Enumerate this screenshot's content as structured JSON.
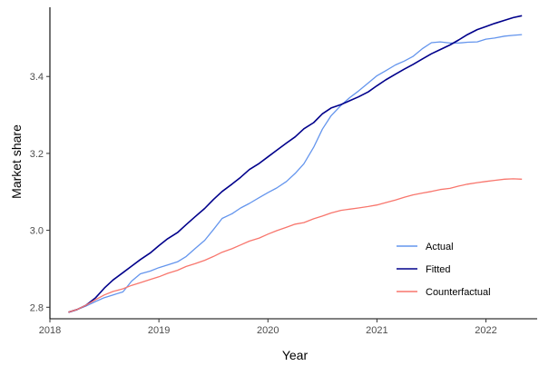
{
  "chart_data": {
    "type": "line",
    "xlabel": "Year",
    "ylabel": "Market share",
    "xlim": [
      2018.0,
      2022.47
    ],
    "ylim": [
      2.77,
      3.58
    ],
    "xticks": [
      2018,
      2019,
      2020,
      2021,
      2022
    ],
    "xtick_labels": [
      "2018",
      "2019",
      "2020",
      "2021",
      "2022"
    ],
    "yticks": [
      2.8,
      3.0,
      3.2,
      3.4
    ],
    "ytick_labels": [
      "2.8",
      "3.0",
      "3.2",
      "3.4"
    ],
    "grid": false,
    "legend_position": "bottom-right",
    "series": [
      {
        "name": "Actual",
        "color": "#6495ED",
        "x": [
          2018.17,
          2018.25,
          2018.33,
          2018.42,
          2018.5,
          2018.58,
          2018.67,
          2018.75,
          2018.83,
          2018.92,
          2019.0,
          2019.08,
          2019.17,
          2019.25,
          2019.33,
          2019.42,
          2019.5,
          2019.58,
          2019.67,
          2019.75,
          2019.83,
          2019.92,
          2020.0,
          2020.08,
          2020.17,
          2020.25,
          2020.33,
          2020.42,
          2020.5,
          2020.58,
          2020.67,
          2020.75,
          2020.83,
          2020.92,
          2021.0,
          2021.08,
          2021.17,
          2021.25,
          2021.33,
          2021.42,
          2021.5,
          2021.58,
          2021.67,
          2021.75,
          2021.83,
          2021.92,
          2022.0,
          2022.08,
          2022.17,
          2022.25,
          2022.33
        ],
        "y": [
          2.787,
          2.794,
          2.803,
          2.815,
          2.825,
          2.832,
          2.84,
          2.868,
          2.887,
          2.894,
          2.903,
          2.91,
          2.918,
          2.932,
          2.952,
          2.974,
          3.002,
          3.031,
          3.043,
          3.058,
          3.07,
          3.085,
          3.098,
          3.11,
          3.127,
          3.148,
          3.173,
          3.216,
          3.263,
          3.298,
          3.325,
          3.345,
          3.362,
          3.383,
          3.402,
          3.415,
          3.43,
          3.44,
          3.452,
          3.473,
          3.488,
          3.49,
          3.487,
          3.487,
          3.489,
          3.49,
          3.497,
          3.5,
          3.505,
          3.507,
          3.509
        ]
      },
      {
        "name": "Fitted",
        "color": "#00008B",
        "x": [
          2018.17,
          2018.25,
          2018.33,
          2018.42,
          2018.5,
          2018.58,
          2018.67,
          2018.75,
          2018.83,
          2018.92,
          2019.0,
          2019.08,
          2019.17,
          2019.25,
          2019.33,
          2019.42,
          2019.5,
          2019.58,
          2019.67,
          2019.75,
          2019.83,
          2019.92,
          2020.0,
          2020.08,
          2020.17,
          2020.25,
          2020.33,
          2020.42,
          2020.5,
          2020.58,
          2020.67,
          2020.75,
          2020.83,
          2020.92,
          2021.0,
          2021.08,
          2021.17,
          2021.25,
          2021.33,
          2021.42,
          2021.5,
          2021.58,
          2021.67,
          2021.75,
          2021.83,
          2021.92,
          2022.0,
          2022.08,
          2022.17,
          2022.25,
          2022.33
        ],
        "y": [
          2.787,
          2.794,
          2.805,
          2.825,
          2.85,
          2.871,
          2.89,
          2.907,
          2.924,
          2.941,
          2.96,
          2.978,
          2.994,
          3.015,
          3.035,
          3.057,
          3.08,
          3.101,
          3.12,
          3.138,
          3.158,
          3.174,
          3.191,
          3.208,
          3.227,
          3.243,
          3.264,
          3.28,
          3.303,
          3.318,
          3.327,
          3.337,
          3.347,
          3.36,
          3.376,
          3.391,
          3.406,
          3.419,
          3.431,
          3.446,
          3.459,
          3.47,
          3.482,
          3.495,
          3.509,
          3.522,
          3.53,
          3.538,
          3.546,
          3.553,
          3.558
        ]
      },
      {
        "name": "Counterfactual",
        "color": "#F8766D",
        "x": [
          2018.17,
          2018.25,
          2018.33,
          2018.42,
          2018.5,
          2018.58,
          2018.67,
          2018.75,
          2018.83,
          2018.92,
          2019.0,
          2019.08,
          2019.17,
          2019.25,
          2019.33,
          2019.42,
          2019.5,
          2019.58,
          2019.67,
          2019.75,
          2019.83,
          2019.92,
          2020.0,
          2020.08,
          2020.17,
          2020.25,
          2020.33,
          2020.42,
          2020.5,
          2020.58,
          2020.67,
          2020.75,
          2020.83,
          2020.92,
          2021.0,
          2021.08,
          2021.17,
          2021.25,
          2021.33,
          2021.42,
          2021.5,
          2021.58,
          2021.67,
          2021.75,
          2021.83,
          2021.92,
          2022.0,
          2022.08,
          2022.17,
          2022.25,
          2022.33
        ],
        "y": [
          2.787,
          2.794,
          2.805,
          2.82,
          2.832,
          2.841,
          2.848,
          2.857,
          2.864,
          2.872,
          2.879,
          2.888,
          2.896,
          2.906,
          2.913,
          2.922,
          2.932,
          2.943,
          2.952,
          2.962,
          2.972,
          2.98,
          2.99,
          2.999,
          3.008,
          3.016,
          3.02,
          3.03,
          3.037,
          3.045,
          3.052,
          3.055,
          3.058,
          3.062,
          3.066,
          3.072,
          3.079,
          3.086,
          3.092,
          3.097,
          3.101,
          3.106,
          3.109,
          3.115,
          3.12,
          3.124,
          3.127,
          3.13,
          3.133,
          3.134,
          3.133
        ]
      }
    ]
  }
}
